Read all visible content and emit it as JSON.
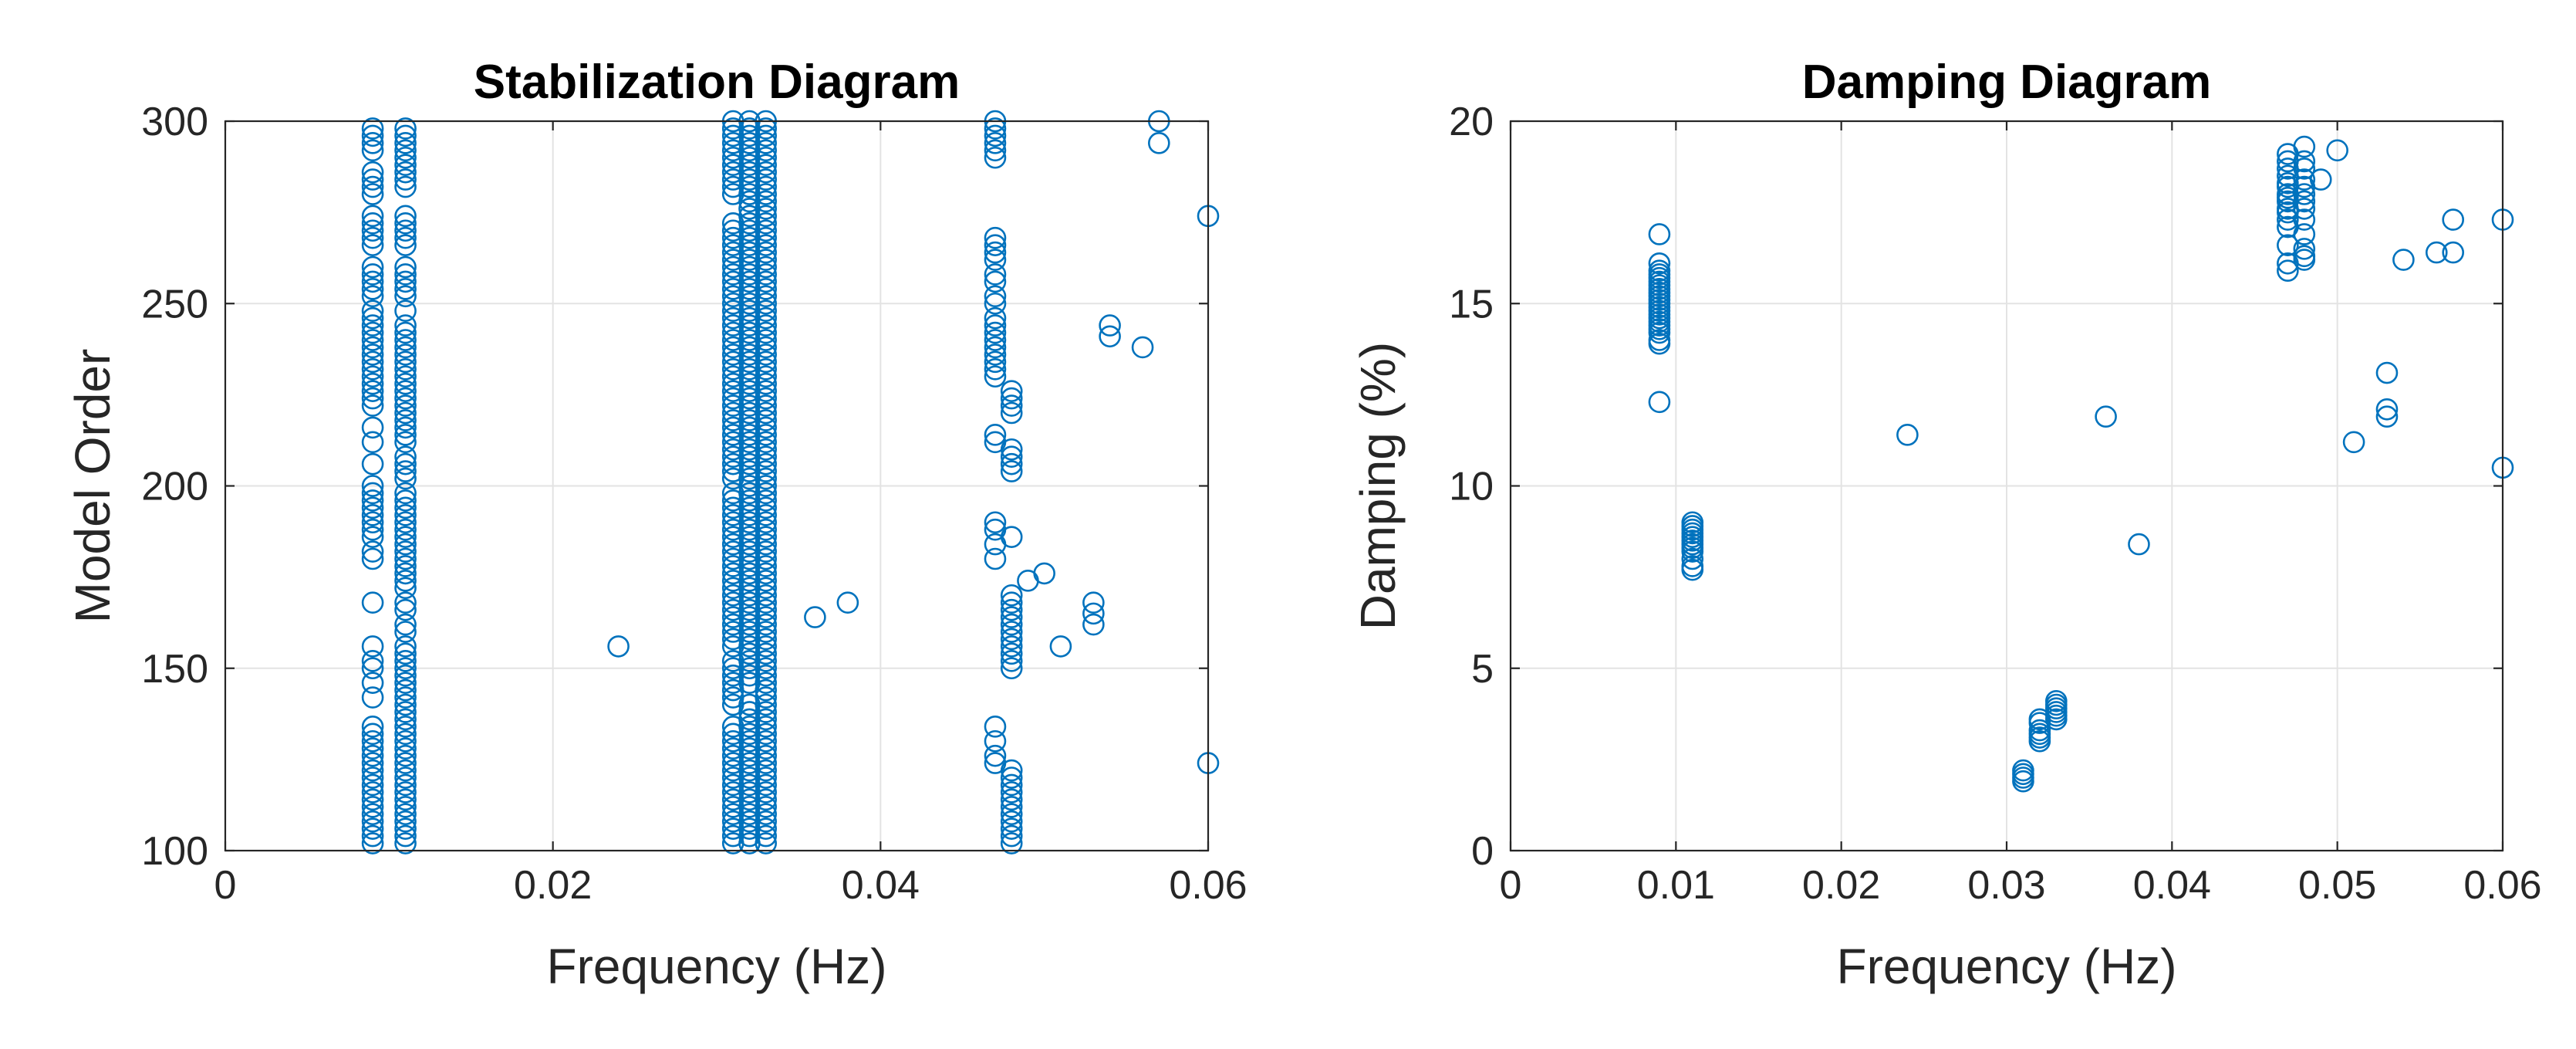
{
  "chart_data": [
    {
      "type": "scatter",
      "title": "Stabilization Diagram",
      "xlabel": "Frequency  (Hz)",
      "ylabel": "Model Order",
      "xlim": [
        0,
        0.06
      ],
      "ylim": [
        100,
        300
      ],
      "xticks": [
        0,
        0.02,
        0.04,
        0.06
      ],
      "xtick_labels": [
        "0",
        "0.02",
        "0.04",
        "0.06"
      ],
      "yticks": [
        100,
        150,
        200,
        250,
        300
      ],
      "ytick_labels": [
        "100",
        "150",
        "200",
        "250",
        "300"
      ],
      "grid": true,
      "marker_color": "#0072BD",
      "series": [
        {
          "name": "poles",
          "columns": [
            {
              "x": 0.009,
              "y": [
                102,
                104,
                106,
                108,
                110,
                112,
                114,
                116,
                118,
                120,
                122,
                124,
                126,
                128,
                130,
                132,
                134,
                142,
                146,
                150,
                152,
                156,
                168,
                180,
                182,
                186,
                188,
                190,
                192,
                194,
                196,
                198,
                200,
                206,
                212,
                216,
                222,
                224,
                226,
                228,
                230,
                232,
                234,
                236,
                238,
                240,
                242,
                244,
                246,
                248,
                252,
                254,
                256,
                258,
                260,
                266,
                268,
                270,
                272,
                274,
                280,
                282,
                284,
                286,
                292,
                294,
                296,
                298
              ]
            },
            {
              "x": 0.011,
              "y": [
                102,
                104,
                106,
                108,
                110,
                112,
                114,
                116,
                118,
                120,
                122,
                124,
                126,
                128,
                130,
                132,
                134,
                136,
                138,
                140,
                142,
                144,
                146,
                148,
                150,
                152,
                154,
                156,
                160,
                162,
                166,
                168,
                172,
                174,
                176,
                178,
                180,
                182,
                184,
                186,
                188,
                190,
                192,
                194,
                196,
                198,
                202,
                204,
                206,
                208,
                212,
                214,
                216,
                218,
                220,
                222,
                224,
                226,
                228,
                230,
                232,
                234,
                236,
                238,
                240,
                242,
                244,
                248,
                252,
                254,
                256,
                258,
                260,
                266,
                268,
                270,
                272,
                274,
                282,
                284,
                286,
                288,
                290,
                292,
                294,
                296,
                298
              ]
            },
            {
              "x": 0.031,
              "y": [
                102,
                104,
                106,
                108,
                110,
                112,
                114,
                116,
                118,
                120,
                122,
                124,
                126,
                128,
                130,
                132,
                134,
                140,
                142,
                144,
                146,
                148,
                150,
                152,
                156,
                158,
                160,
                162,
                164,
                166,
                168,
                170,
                172,
                174,
                176,
                178,
                180,
                182,
                184,
                186,
                188,
                190,
                192,
                194,
                196,
                198,
                202,
                204,
                206,
                208,
                210,
                212,
                214,
                216,
                218,
                220,
                222,
                224,
                226,
                228,
                230,
                232,
                234,
                236,
                238,
                240,
                242,
                244,
                246,
                248,
                250,
                252,
                254,
                256,
                258,
                260,
                262,
                264,
                266,
                268,
                270,
                272,
                280,
                282,
                284,
                286,
                288,
                290,
                292,
                294,
                296,
                298,
                300
              ]
            },
            {
              "x": 0.032,
              "y": [
                102,
                104,
                106,
                108,
                110,
                112,
                114,
                116,
                118,
                120,
                122,
                124,
                126,
                128,
                130,
                132,
                134,
                136,
                138,
                140,
                146,
                148,
                150,
                152,
                154,
                156,
                158,
                160,
                162,
                164,
                166,
                168,
                170,
                172,
                174,
                176,
                178,
                180,
                182,
                184,
                186,
                188,
                190,
                192,
                194,
                196,
                198,
                200,
                202,
                204,
                206,
                208,
                210,
                212,
                214,
                216,
                218,
                220,
                222,
                224,
                226,
                228,
                230,
                232,
                234,
                236,
                238,
                240,
                242,
                244,
                246,
                248,
                250,
                252,
                254,
                256,
                258,
                260,
                262,
                264,
                266,
                268,
                270,
                272,
                274,
                276,
                278,
                280,
                282,
                284,
                286,
                288,
                290,
                292,
                294,
                296,
                298,
                300
              ]
            },
            {
              "x": 0.033,
              "y": [
                102,
                104,
                106,
                108,
                110,
                112,
                114,
                116,
                118,
                120,
                122,
                124,
                126,
                128,
                130,
                132,
                134,
                136,
                138,
                140,
                142,
                144,
                146,
                148,
                150,
                152,
                154,
                156,
                158,
                160,
                162,
                164,
                166,
                168,
                170,
                172,
                174,
                176,
                178,
                180,
                182,
                184,
                186,
                188,
                190,
                192,
                194,
                196,
                198,
                200,
                202,
                204,
                206,
                208,
                210,
                212,
                214,
                216,
                218,
                220,
                222,
                224,
                226,
                228,
                230,
                232,
                234,
                236,
                238,
                240,
                242,
                244,
                246,
                248,
                250,
                252,
                254,
                256,
                258,
                260,
                262,
                264,
                266,
                268,
                270,
                272,
                274,
                276,
                278,
                280,
                282,
                284,
                286,
                288,
                290,
                292,
                294,
                296,
                298,
                300
              ]
            },
            {
              "x": 0.047,
              "y": [
                124,
                126,
                130,
                134,
                180,
                184,
                188,
                190,
                230,
                232,
                234,
                236,
                238,
                240,
                242,
                244,
                246,
                250,
                252,
                256,
                258,
                262,
                264,
                266,
                268,
                212,
                214,
                290,
                292,
                294,
                296,
                298,
                300
              ]
            },
            {
              "x": 0.048,
              "y": [
                102,
                104,
                106,
                108,
                110,
                112,
                114,
                116,
                118,
                120,
                122,
                150,
                152,
                154,
                156,
                158,
                160,
                162,
                164,
                166,
                168,
                170,
                186,
                204,
                206,
                208,
                210,
                220,
                222,
                224,
                226
              ]
            }
          ],
          "points": [
            {
              "x": 0.024,
              "y": 156
            },
            {
              "x": 0.036,
              "y": 164
            },
            {
              "x": 0.038,
              "y": 168
            },
            {
              "x": 0.049,
              "y": 174
            },
            {
              "x": 0.05,
              "y": 176
            },
            {
              "x": 0.051,
              "y": 156
            },
            {
              "x": 0.053,
              "y": 168
            },
            {
              "x": 0.053,
              "y": 165
            },
            {
              "x": 0.053,
              "y": 162
            },
            {
              "x": 0.054,
              "y": 244
            },
            {
              "x": 0.054,
              "y": 241
            },
            {
              "x": 0.056,
              "y": 238
            },
            {
              "x": 0.057,
              "y": 300
            },
            {
              "x": 0.057,
              "y": 294
            },
            {
              "x": 0.06,
              "y": 274
            },
            {
              "x": 0.06,
              "y": 124
            }
          ]
        }
      ]
    },
    {
      "type": "scatter",
      "title": "Damping Diagram",
      "xlabel": "Frequency  (Hz)",
      "ylabel": "Damping   (%)",
      "xlim": [
        0,
        0.06
      ],
      "ylim": [
        0,
        20
      ],
      "xticks": [
        0,
        0.01,
        0.02,
        0.03,
        0.04,
        0.05,
        0.06
      ],
      "xtick_labels": [
        "0",
        "0.01",
        "0.02",
        "0.03",
        "0.04",
        "0.05",
        "0.06"
      ],
      "yticks": [
        0,
        5,
        10,
        15,
        20
      ],
      "ytick_labels": [
        "0",
        "5",
        "10",
        "15",
        "20"
      ],
      "grid": true,
      "marker_color": "#0072BD",
      "series": [
        {
          "name": "poles",
          "columns": [
            {
              "x": 0.009,
              "y": [
                12.3,
                13.9,
                14.0,
                14.2,
                14.3,
                14.4,
                14.5,
                14.6,
                14.7,
                14.8,
                14.9,
                15.0,
                15.1,
                15.2,
                15.3,
                15.4,
                15.5,
                15.6,
                15.7,
                15.8,
                15.9,
                16.1,
                16.9
              ]
            },
            {
              "x": 0.011,
              "y": [
                7.7,
                7.8,
                8.0,
                8.2,
                8.3,
                8.4,
                8.5,
                8.6,
                8.7,
                8.8,
                8.9,
                9.0
              ]
            },
            {
              "x": 0.031,
              "y": [
                1.9,
                2.0,
                2.1,
                2.2
              ]
            },
            {
              "x": 0.032,
              "y": [
                3.0,
                3.1,
                3.2,
                3.3,
                3.5,
                3.6
              ]
            },
            {
              "x": 0.033,
              "y": [
                3.6,
                3.7,
                3.8,
                3.9,
                4.0,
                4.1
              ]
            },
            {
              "x": 0.047,
              "y": [
                15.9,
                16.1,
                16.6,
                17.1,
                17.3,
                17.5,
                17.6,
                17.8,
                17.9,
                18.0,
                18.2,
                18.3,
                18.5,
                18.7,
                18.9,
                19.1
              ]
            },
            {
              "x": 0.048,
              "y": [
                16.2,
                16.3,
                16.5,
                16.9,
                17.3,
                17.6,
                17.8,
                18.0,
                18.2,
                18.4,
                18.7,
                18.9,
                19.3
              ]
            }
          ],
          "points": [
            {
              "x": 0.024,
              "y": 11.4
            },
            {
              "x": 0.036,
              "y": 11.9
            },
            {
              "x": 0.038,
              "y": 8.4
            },
            {
              "x": 0.049,
              "y": 18.4
            },
            {
              "x": 0.05,
              "y": 19.2
            },
            {
              "x": 0.051,
              "y": 11.2
            },
            {
              "x": 0.053,
              "y": 13.1
            },
            {
              "x": 0.053,
              "y": 12.1
            },
            {
              "x": 0.053,
              "y": 11.9
            },
            {
              "x": 0.054,
              "y": 16.2
            },
            {
              "x": 0.056,
              "y": 16.4
            },
            {
              "x": 0.057,
              "y": 16.4
            },
            {
              "x": 0.057,
              "y": 17.3
            },
            {
              "x": 0.06,
              "y": 17.3
            },
            {
              "x": 0.06,
              "y": 10.5
            }
          ]
        }
      ]
    }
  ]
}
